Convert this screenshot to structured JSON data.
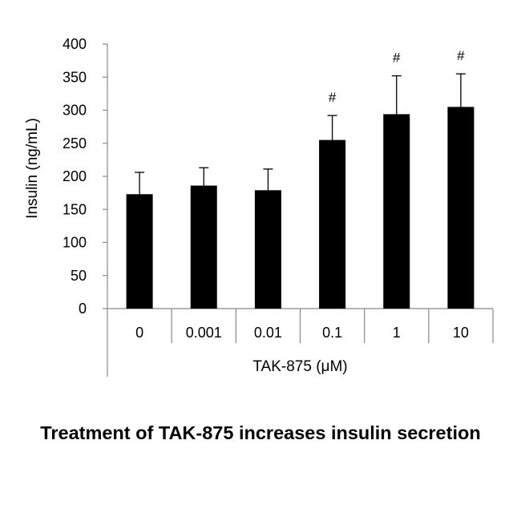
{
  "caption": "Treatment of TAK-875 increases insulin secretion",
  "chart_data": {
    "type": "bar",
    "categories": [
      "0",
      "0.001",
      "0.01",
      "0.1",
      "1",
      "10"
    ],
    "values": [
      173,
      186,
      179,
      255,
      294,
      305
    ],
    "error_upper": [
      206,
      213,
      211,
      292,
      352,
      355
    ],
    "annotations": [
      "",
      "",
      "",
      "#",
      "#",
      "#"
    ],
    "xlabel": "TAK-875 (μM)",
    "ylabel": "Insulin (ng/mL)",
    "ylim": [
      0,
      400
    ],
    "yticks": [
      0,
      50,
      100,
      150,
      200,
      250,
      300,
      350,
      400
    ],
    "grid": false,
    "bar_color": "#000000"
  }
}
